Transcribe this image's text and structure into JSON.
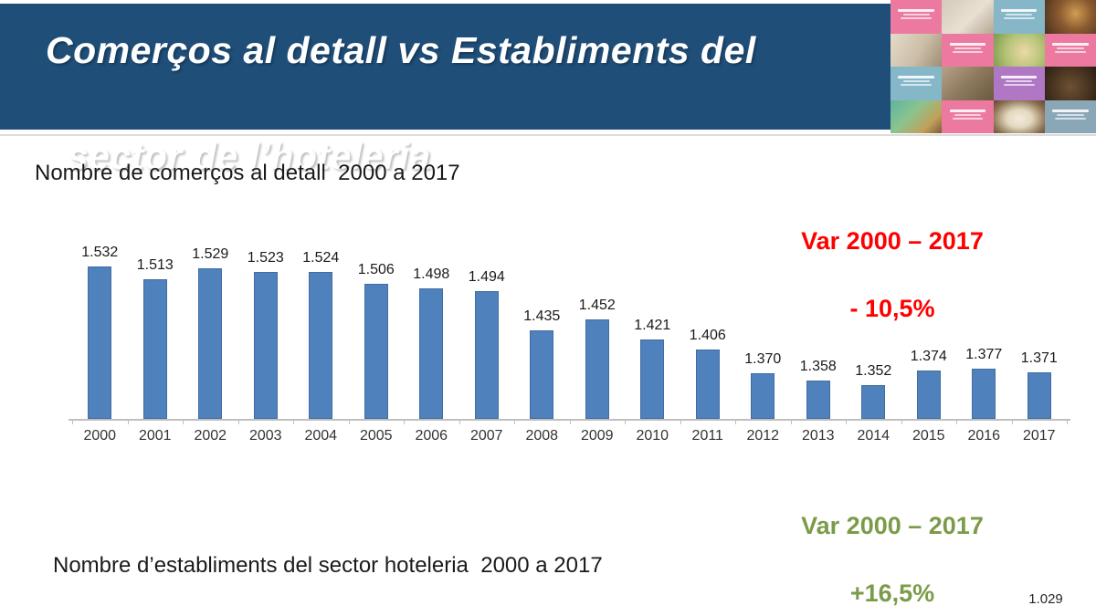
{
  "slide": {
    "banner_title_line1": "Comerços al detall vs Establiments del",
    "banner_title_line2": "sector de l’hoteleria",
    "page_number": "1.029"
  },
  "retail_section": {
    "title": "Nombre de comerços al detall  2000 a 2017",
    "variation_title": "Var 2000 – 2017",
    "variation_value": "- 10,5%"
  },
  "hotel_section": {
    "title": "Nombre d’establiments del sector hoteleria  2000 a 2017",
    "variation_title": "Var 2000 – 2017",
    "variation_value": "+16,5%"
  },
  "colors": {
    "banner_bg": "#1f4e79",
    "bar": "#4f81bd",
    "negative_variation": "#fe0000",
    "positive_variation": "#7c9b49",
    "axis": "#bfbfbf"
  },
  "chart_data": {
    "type": "bar",
    "title": "Nombre de comerços al detall 2000 a 2017",
    "categories": [
      "2000",
      "2001",
      "2002",
      "2003",
      "2004",
      "2005",
      "2006",
      "2007",
      "2008",
      "2009",
      "2010",
      "2011",
      "2012",
      "2013",
      "2014",
      "2015",
      "2016",
      "2017"
    ],
    "values": [
      1532,
      1513,
      1529,
      1523,
      1524,
      1506,
      1498,
      1494,
      1435,
      1452,
      1421,
      1406,
      1370,
      1358,
      1352,
      1374,
      1377,
      1371
    ],
    "value_labels": [
      "1.532",
      "1.513",
      "1.529",
      "1.523",
      "1.524",
      "1.506",
      "1.498",
      "1.494",
      "1.435",
      "1.452",
      "1.421",
      "1.406",
      "1.370",
      "1.358",
      "1.352",
      "1.374",
      "1.377",
      "1.371"
    ],
    "xlabel": "",
    "ylabel": "",
    "ylim": [
      1300,
      1560
    ],
    "grid": false,
    "legend": false,
    "data_labels": true,
    "bar_color": "#4f81bd"
  },
  "collage": {
    "tiles": [
      {
        "kind": "text",
        "style": "t-pink"
      },
      {
        "kind": "photo",
        "style": "p-light"
      },
      {
        "kind": "text",
        "style": "t-teal"
      },
      {
        "kind": "photo",
        "style": "p-carousel"
      },
      {
        "kind": "photo",
        "style": "p-beige"
      },
      {
        "kind": "text",
        "style": "t-pink"
      },
      {
        "kind": "photo",
        "style": "p-garden"
      },
      {
        "kind": "text",
        "style": "t-pink"
      },
      {
        "kind": "text",
        "style": "t-teal"
      },
      {
        "kind": "photo",
        "style": "p-cats"
      },
      {
        "kind": "text",
        "style": "t-purple"
      },
      {
        "kind": "photo",
        "style": "p-food"
      },
      {
        "kind": "photo",
        "style": "p-crafts"
      },
      {
        "kind": "text",
        "style": "t-pink"
      },
      {
        "kind": "photo",
        "style": "p-book"
      },
      {
        "kind": "text",
        "style": "t-bluegray"
      }
    ]
  }
}
